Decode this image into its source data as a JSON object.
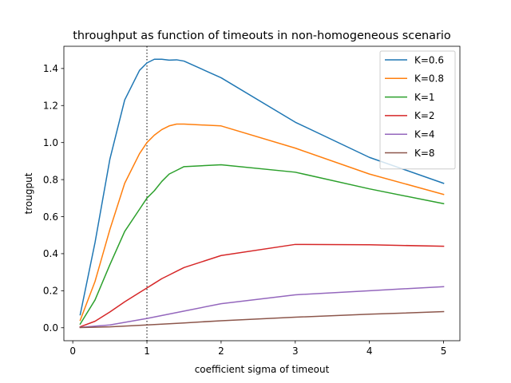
{
  "chart_data": {
    "type": "line",
    "title": "throughput as function of timeouts in non-homogeneous scenario",
    "xlabel": "coefficient sigma of timeout",
    "ylabel": "trougput",
    "xlim": [
      -0.12,
      5.22
    ],
    "ylim": [
      -0.07,
      1.52
    ],
    "xticks": [
      0,
      1,
      2,
      3,
      4,
      5
    ],
    "xtick_labels": [
      "0",
      "1",
      "2",
      "3",
      "4",
      "5"
    ],
    "yticks": [
      0.0,
      0.2,
      0.4,
      0.6,
      0.8,
      1.0,
      1.2,
      1.4
    ],
    "ytick_labels": [
      "0.0",
      "0.2",
      "0.4",
      "0.6",
      "0.8",
      "1.0",
      "1.2",
      "1.4"
    ],
    "grid": false,
    "legend_position": "top-right",
    "vline": {
      "x": 1,
      "style": "dotted",
      "color": "#555555"
    },
    "series": [
      {
        "name": "K=0.6",
        "color": "#1f77b4",
        "x": [
          0.1,
          0.3,
          0.5,
          0.7,
          0.9,
          1.0,
          1.1,
          1.2,
          1.3,
          1.4,
          1.5,
          2.0,
          3.0,
          4.0,
          5.0
        ],
        "y": [
          0.07,
          0.46,
          0.91,
          1.23,
          1.39,
          1.43,
          1.45,
          1.45,
          1.445,
          1.447,
          1.44,
          1.35,
          1.11,
          0.92,
          0.78
        ]
      },
      {
        "name": "K=0.8",
        "color": "#ff7f0e",
        "x": [
          0.1,
          0.3,
          0.5,
          0.7,
          0.9,
          1.0,
          1.1,
          1.2,
          1.3,
          1.4,
          1.5,
          2.0,
          3.0,
          4.0,
          5.0
        ],
        "y": [
          0.04,
          0.25,
          0.53,
          0.78,
          0.94,
          1.0,
          1.04,
          1.07,
          1.09,
          1.1,
          1.1,
          1.09,
          0.97,
          0.83,
          0.72
        ]
      },
      {
        "name": "K=1",
        "color": "#2ca02c",
        "x": [
          0.1,
          0.3,
          0.5,
          0.7,
          0.9,
          1.0,
          1.1,
          1.2,
          1.3,
          1.4,
          1.5,
          2.0,
          3.0,
          4.0,
          5.0
        ],
        "y": [
          0.02,
          0.15,
          0.34,
          0.52,
          0.64,
          0.7,
          0.74,
          0.79,
          0.83,
          0.85,
          0.87,
          0.88,
          0.84,
          0.75,
          0.67
        ]
      },
      {
        "name": "K=2",
        "color": "#d62728",
        "x": [
          0.1,
          0.3,
          0.5,
          0.7,
          0.9,
          1.0,
          1.1,
          1.2,
          1.3,
          1.4,
          1.5,
          2.0,
          3.0,
          4.0,
          5.0
        ],
        "y": [
          0.005,
          0.035,
          0.085,
          0.14,
          0.19,
          0.215,
          0.24,
          0.265,
          0.285,
          0.305,
          0.325,
          0.39,
          0.45,
          0.448,
          0.44
        ]
      },
      {
        "name": "K=4",
        "color": "#9467bd",
        "x": [
          0.1,
          0.5,
          1.0,
          1.5,
          2.0,
          3.0,
          4.0,
          5.0
        ],
        "y": [
          0.002,
          0.015,
          0.05,
          0.09,
          0.13,
          0.178,
          0.2,
          0.222
        ]
      },
      {
        "name": "K=8",
        "color": "#8c564b",
        "x": [
          0.1,
          0.5,
          1.0,
          1.5,
          2.0,
          3.0,
          4.0,
          5.0
        ],
        "y": [
          0.001,
          0.005,
          0.015,
          0.026,
          0.038,
          0.057,
          0.073,
          0.087
        ]
      }
    ]
  }
}
